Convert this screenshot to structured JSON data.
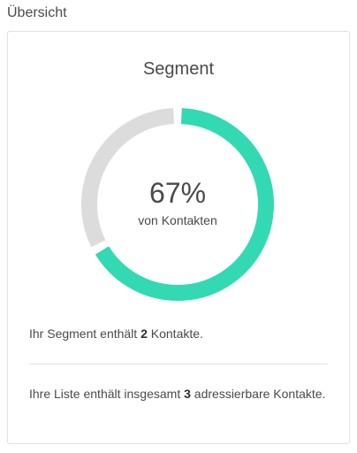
{
  "overview": {
    "section_title": "Übersicht"
  },
  "segment_card": {
    "title": "Segment",
    "percent_label": "67%",
    "percent_value": 67,
    "caption": "von Kontakten",
    "segment_line": {
      "prefix": "Ihr Segment enthält ",
      "count": "2",
      "suffix": " Kontakte."
    },
    "list_line": {
      "prefix": "Ihre Liste enthält insgesamt ",
      "count": "3",
      "suffix": " adressierbare Kontakte."
    }
  },
  "colors": {
    "accent": "#33d9b2",
    "track": "#dcdcdc",
    "border": "#e2e2e2",
    "text": "#4a4a4a"
  }
}
